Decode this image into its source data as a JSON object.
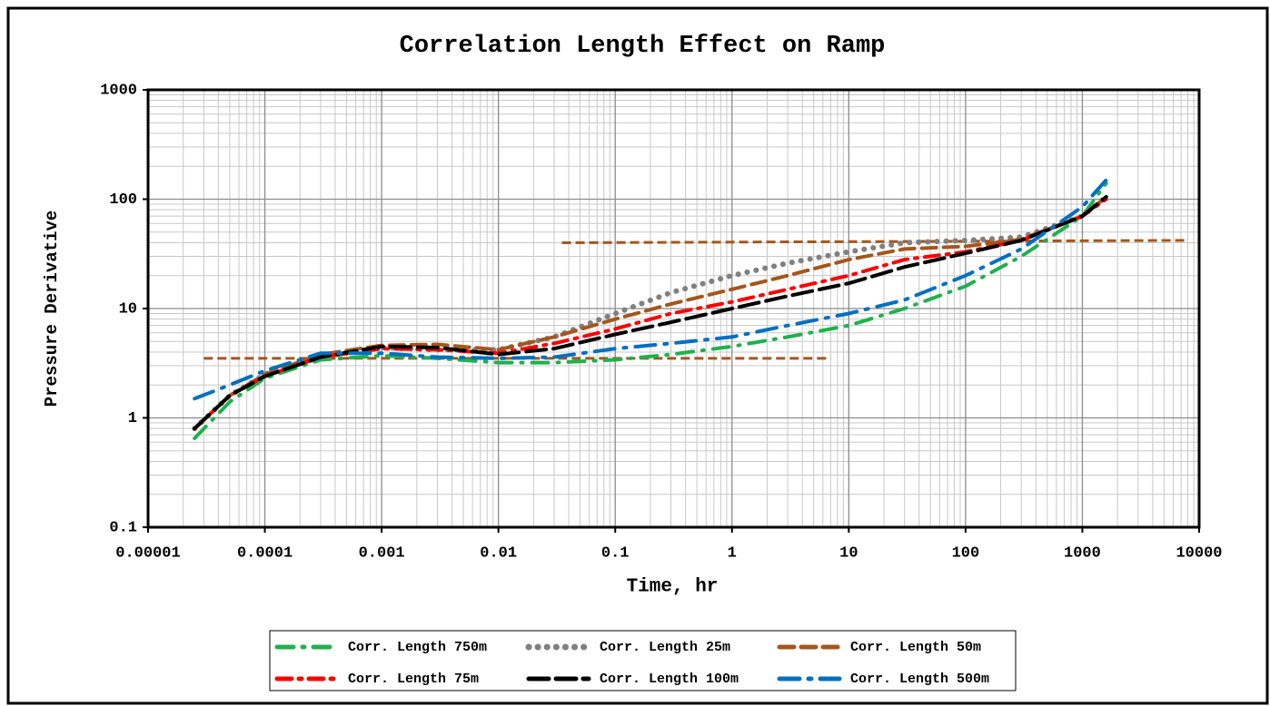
{
  "chart_data": {
    "type": "line",
    "title": "Correlation Length Effect on Ramp",
    "x_label": "Time, hr",
    "y_label": "Pressure Derivative",
    "log_x": true,
    "log_y": true,
    "grid": true,
    "minor_grid": true,
    "legend": "bottom",
    "xlim": [
      1e-05,
      10000
    ],
    "ylim": [
      0.1,
      1000
    ],
    "xticks": [
      1e-05,
      0.0001,
      0.001,
      0.01,
      0.1,
      1,
      10,
      100,
      1000,
      10000
    ],
    "yticks": [
      0.1,
      1,
      10,
      100,
      1000
    ],
    "x": [
      2.5e-05,
      5e-05,
      0.0001,
      0.0003,
      0.001,
      0.003,
      0.01,
      0.03,
      0.1,
      0.3,
      1,
      3,
      10,
      30,
      100,
      300,
      1000,
      1600
    ],
    "series": [
      {
        "name": "Corr. Length 750m",
        "color": "#1fb14e",
        "dash": "dashdot-sparse",
        "values": [
          0.65,
          1.4,
          2.3,
          3.4,
          3.7,
          3.5,
          3.2,
          3.2,
          3.4,
          3.8,
          4.5,
          5.5,
          7,
          10,
          16,
          30,
          70,
          140
        ]
      },
      {
        "name": "Corr. Length 25m",
        "color": "#808080",
        "dash": "dot",
        "values": [
          0.8,
          1.6,
          2.5,
          3.6,
          4.4,
          4.2,
          4.2,
          5.5,
          9,
          14,
          20,
          26,
          33,
          40,
          42,
          45,
          70,
          105
        ]
      },
      {
        "name": "Corr. Length 50m",
        "color": "#a5561c",
        "dash": "dash",
        "values": [
          0.8,
          1.6,
          2.5,
          3.8,
          4.6,
          4.7,
          4.2,
          5.5,
          8,
          11,
          15,
          20,
          28,
          35,
          37,
          43,
          70,
          105
        ]
      },
      {
        "name": "Corr. Length 75m",
        "color": "#ff0000",
        "dash": "dashdot",
        "values": [
          0.8,
          1.6,
          2.4,
          3.6,
          4.3,
          4.2,
          3.9,
          4.8,
          6.5,
          9,
          11.5,
          15,
          20,
          28,
          33,
          42,
          70,
          100
        ]
      },
      {
        "name": "Corr. Length 100m",
        "color": "#000000",
        "dash": "longdash",
        "values": [
          0.8,
          1.6,
          2.4,
          3.6,
          4.5,
          4.4,
          3.8,
          4.3,
          5.8,
          7.5,
          10,
          13,
          17,
          24,
          32,
          42,
          70,
          105
        ]
      },
      {
        "name": "Corr. Length 500m",
        "color": "#0070c0",
        "dash": "dashdot-long",
        "values": [
          1.5,
          2.0,
          2.7,
          3.9,
          3.9,
          3.6,
          3.5,
          3.6,
          4.3,
          4.8,
          5.5,
          7,
          9,
          12,
          20,
          35,
          85,
          150
        ]
      }
    ],
    "reference_lines": [
      {
        "color": "#a5561c",
        "x": [
          3e-05,
          7
        ],
        "values": [
          3.5,
          3.5
        ]
      },
      {
        "color": "#a5561c",
        "x": [
          0.035,
          8000
        ],
        "values": [
          40,
          42
        ]
      }
    ]
  }
}
